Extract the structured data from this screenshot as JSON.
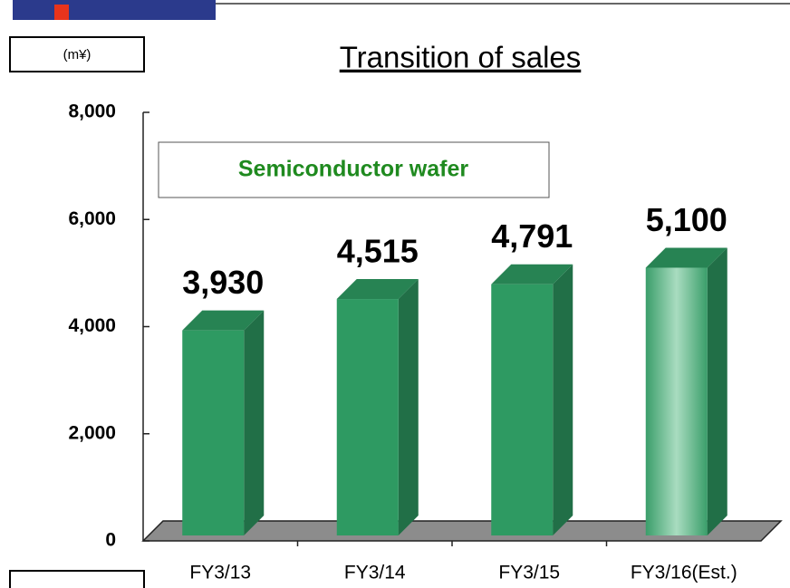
{
  "chart_data": {
    "type": "bar3d",
    "title": "Transition of sales",
    "y_label": "(m¥)",
    "categories": [
      "FY3/13",
      "FY3/14",
      "FY3/15",
      "FY3/16(Est.)"
    ],
    "series": [
      {
        "name": "Semiconductor wafer",
        "color": "#2e9a62",
        "legend_color": "#1f8a1f",
        "values": [
          3930,
          4515,
          4791,
          5100
        ],
        "value_labels": [
          "3,930",
          "4,515",
          "4,791",
          "5,100"
        ],
        "colors": [
          "#2e9a62",
          "#2e9a62",
          "#2e9a62",
          "#a9dcc0"
        ]
      }
    ],
    "ylim": [
      0,
      8000
    ],
    "yticks": [
      {
        "value": 0,
        "label": "0"
      },
      {
        "value": 2000,
        "label": "2,000"
      },
      {
        "value": 4000,
        "label": "4,000"
      },
      {
        "value": 6000,
        "label": "6,000"
      },
      {
        "value": 8000,
        "label": "8,000"
      }
    ]
  }
}
